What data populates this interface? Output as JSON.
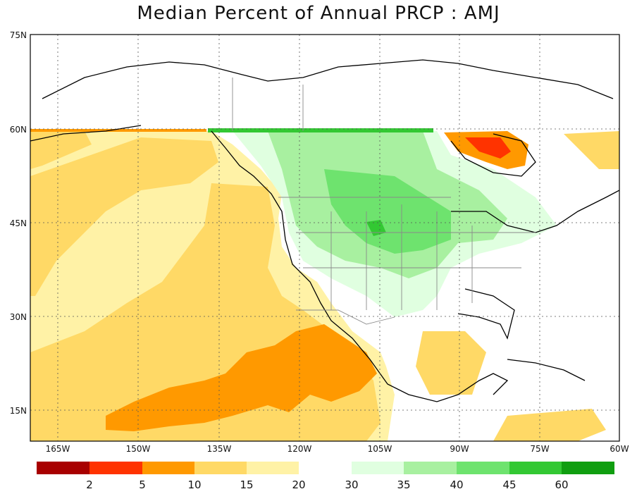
{
  "title": "Median Percent of Annual PRCP   :   AMJ",
  "axes": {
    "y_ticks": [
      "75N",
      "60N",
      "45N",
      "30N",
      "15N"
    ],
    "x_ticks": [
      "165W",
      "150W",
      "135W",
      "120W",
      "105W",
      "90W",
      "75W",
      "60W"
    ]
  },
  "legend": {
    "low_colors": [
      "#a80000",
      "#ff3300",
      "#ff9900",
      "#ffd966",
      "#fff2a6"
    ],
    "high_colors": [
      "#e0ffe0",
      "#a8f0a0",
      "#6ee36e",
      "#33c833",
      "#109e10"
    ],
    "low_labels": [
      "2",
      "5",
      "10",
      "15",
      "20"
    ],
    "high_labels": [
      "30",
      "35",
      "40",
      "45",
      "60"
    ]
  },
  "colors": {
    "ocean_pale": "#fff2a6",
    "ocean_mid": "#ffd966",
    "ocean_deep": "#ff9900",
    "red": "#ff3300",
    "green_light": "#e0ffe0",
    "green_mid": "#a8f0a0",
    "green_strong": "#6ee36e",
    "green_dark": "#33c833",
    "green_darkest": "#109e10"
  }
}
